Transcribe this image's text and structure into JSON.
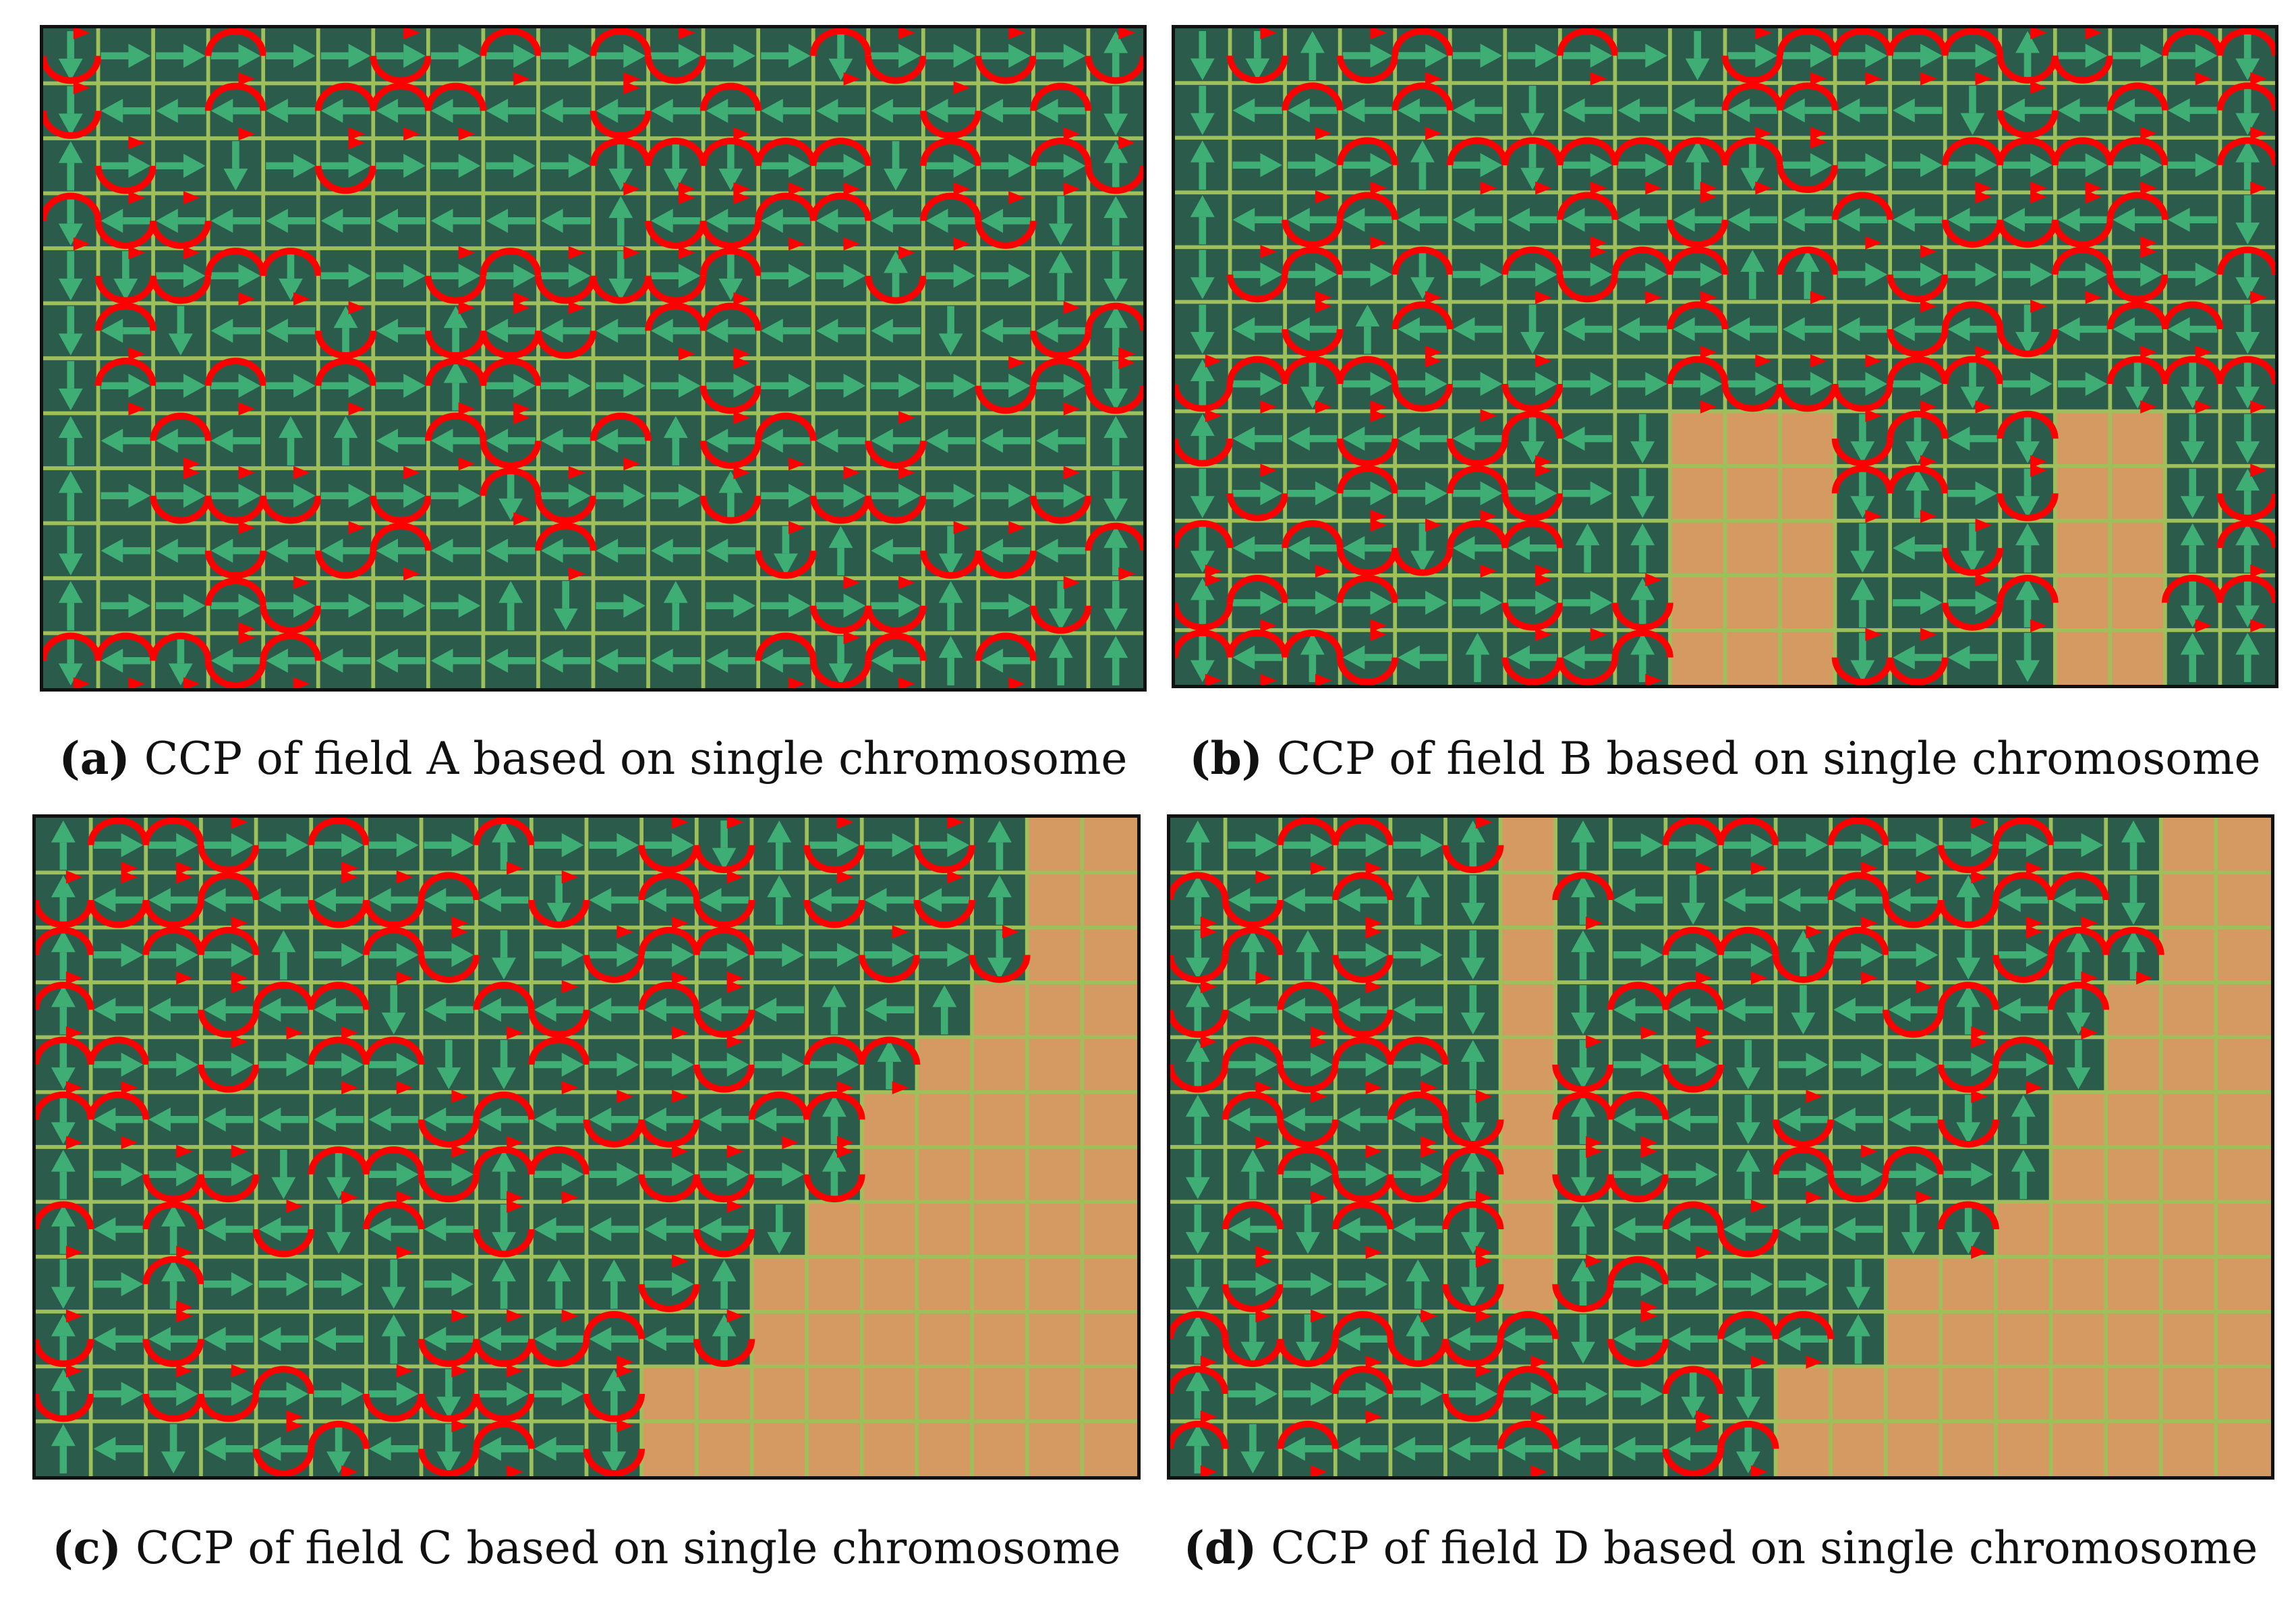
{
  "colors": {
    "field": "#2b5b4b",
    "bare": "#d49a62",
    "grid": "#9fbf5a",
    "path_straight": "#3fae74",
    "path_turn": "#ff0000"
  },
  "grid": {
    "cols": 20,
    "rows": 12
  },
  "panels": [
    {
      "id": "a",
      "label": "(a)",
      "caption": "CCP of field A based on single chromosome",
      "bare_cells": [],
      "turn_density": 0.45,
      "seed": 3
    },
    {
      "id": "b",
      "label": "(b)",
      "caption": "CCP of field B based on single chromosome",
      "bare_cells": [
        {
          "cols": [
            9,
            11
          ],
          "rows": [
            7,
            11
          ]
        },
        {
          "cols": [
            16,
            17
          ],
          "rows": [
            7,
            11
          ]
        }
      ],
      "turn_density": 0.5,
      "seed": 7
    },
    {
      "id": "c",
      "label": "(c)",
      "caption": "CCP of field C based on single chromosome",
      "bare_first_col_by_row": [
        18,
        18,
        18,
        17,
        16,
        15,
        15,
        14,
        13,
        13,
        11,
        11
      ],
      "turn_density": 0.5,
      "seed": 11
    },
    {
      "id": "d",
      "label": "(d)",
      "caption": "CCP of field D based on single chromosome",
      "bare_cells": [
        {
          "cols": [
            6,
            6
          ],
          "rows": [
            0,
            8
          ]
        }
      ],
      "bare_first_col_by_row": [
        18,
        18,
        18,
        17,
        17,
        16,
        16,
        15,
        13,
        13,
        11,
        11
      ],
      "turn_density": 0.55,
      "seed": 19
    }
  ]
}
